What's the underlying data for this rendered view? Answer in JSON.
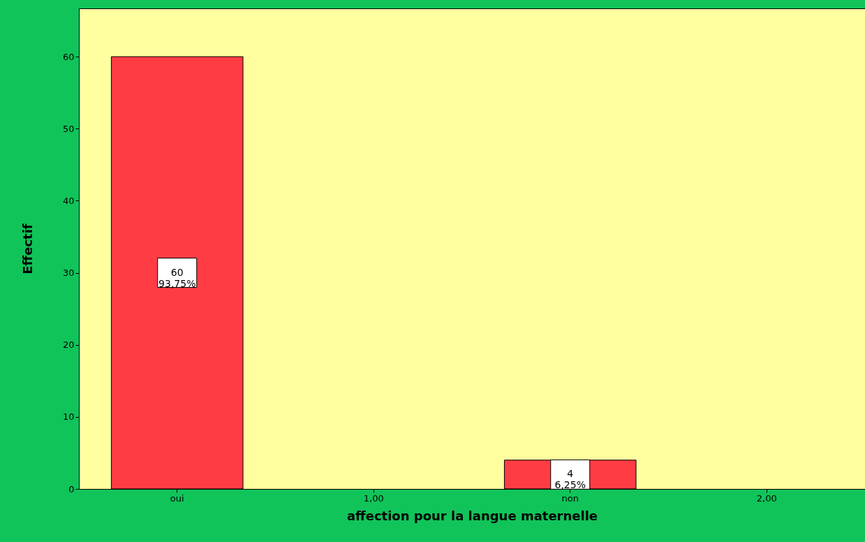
{
  "chart_data": {
    "type": "bar",
    "xlabel": "affection pour la langue maternelle",
    "ylabel": "Effectif",
    "categories": [
      "oui",
      "1,00",
      "non",
      "2,00"
    ],
    "values": [
      60,
      null,
      4,
      null
    ],
    "value_labels": [
      "60\n93,75%",
      null,
      "4\n6,25%",
      null
    ],
    "color": "#ff3c44",
    "ylim": [
      0,
      66.7
    ],
    "yticks": [
      0,
      10,
      20,
      30,
      40,
      50,
      60
    ],
    "grid": false
  }
}
